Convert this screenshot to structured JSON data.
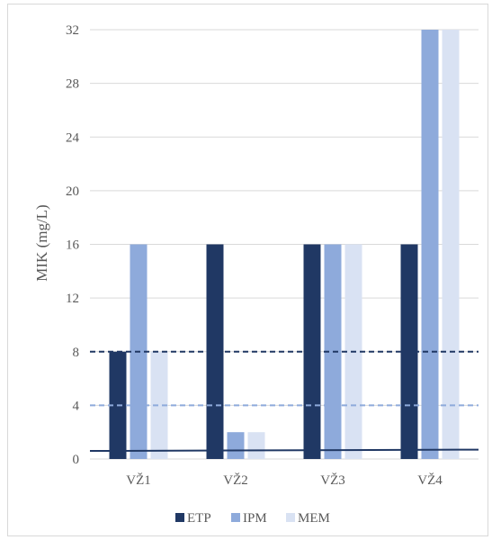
{
  "chart_data": {
    "type": "bar",
    "title": "",
    "xlabel": "",
    "ylabel": "MIK (mg/L)",
    "ylim": [
      0,
      32
    ],
    "yticks": [
      0,
      4,
      8,
      12,
      16,
      20,
      24,
      28,
      32
    ],
    "categories": [
      "VŽ1",
      "VŽ2",
      "VŽ3",
      "VŽ4"
    ],
    "series": [
      {
        "name": "ETP",
        "color": "#203864",
        "values": [
          8,
          16,
          16,
          16
        ]
      },
      {
        "name": "IPM",
        "color": "#8eaadb",
        "values": [
          16,
          2,
          16,
          32
        ]
      },
      {
        "name": "MEM",
        "color": "#d9e2f3",
        "values": [
          8,
          2,
          16,
          32
        ]
      }
    ],
    "reference_lines": [
      {
        "style": "dashed",
        "color": "#203864",
        "y": 8
      },
      {
        "style": "dashed",
        "color": "#8eaadb",
        "y": 4
      },
      {
        "style": "solid",
        "color": "#203864",
        "y_start": 0.6,
        "y_end": 0.7
      }
    ],
    "grid": true,
    "legend_position": "bottom"
  }
}
